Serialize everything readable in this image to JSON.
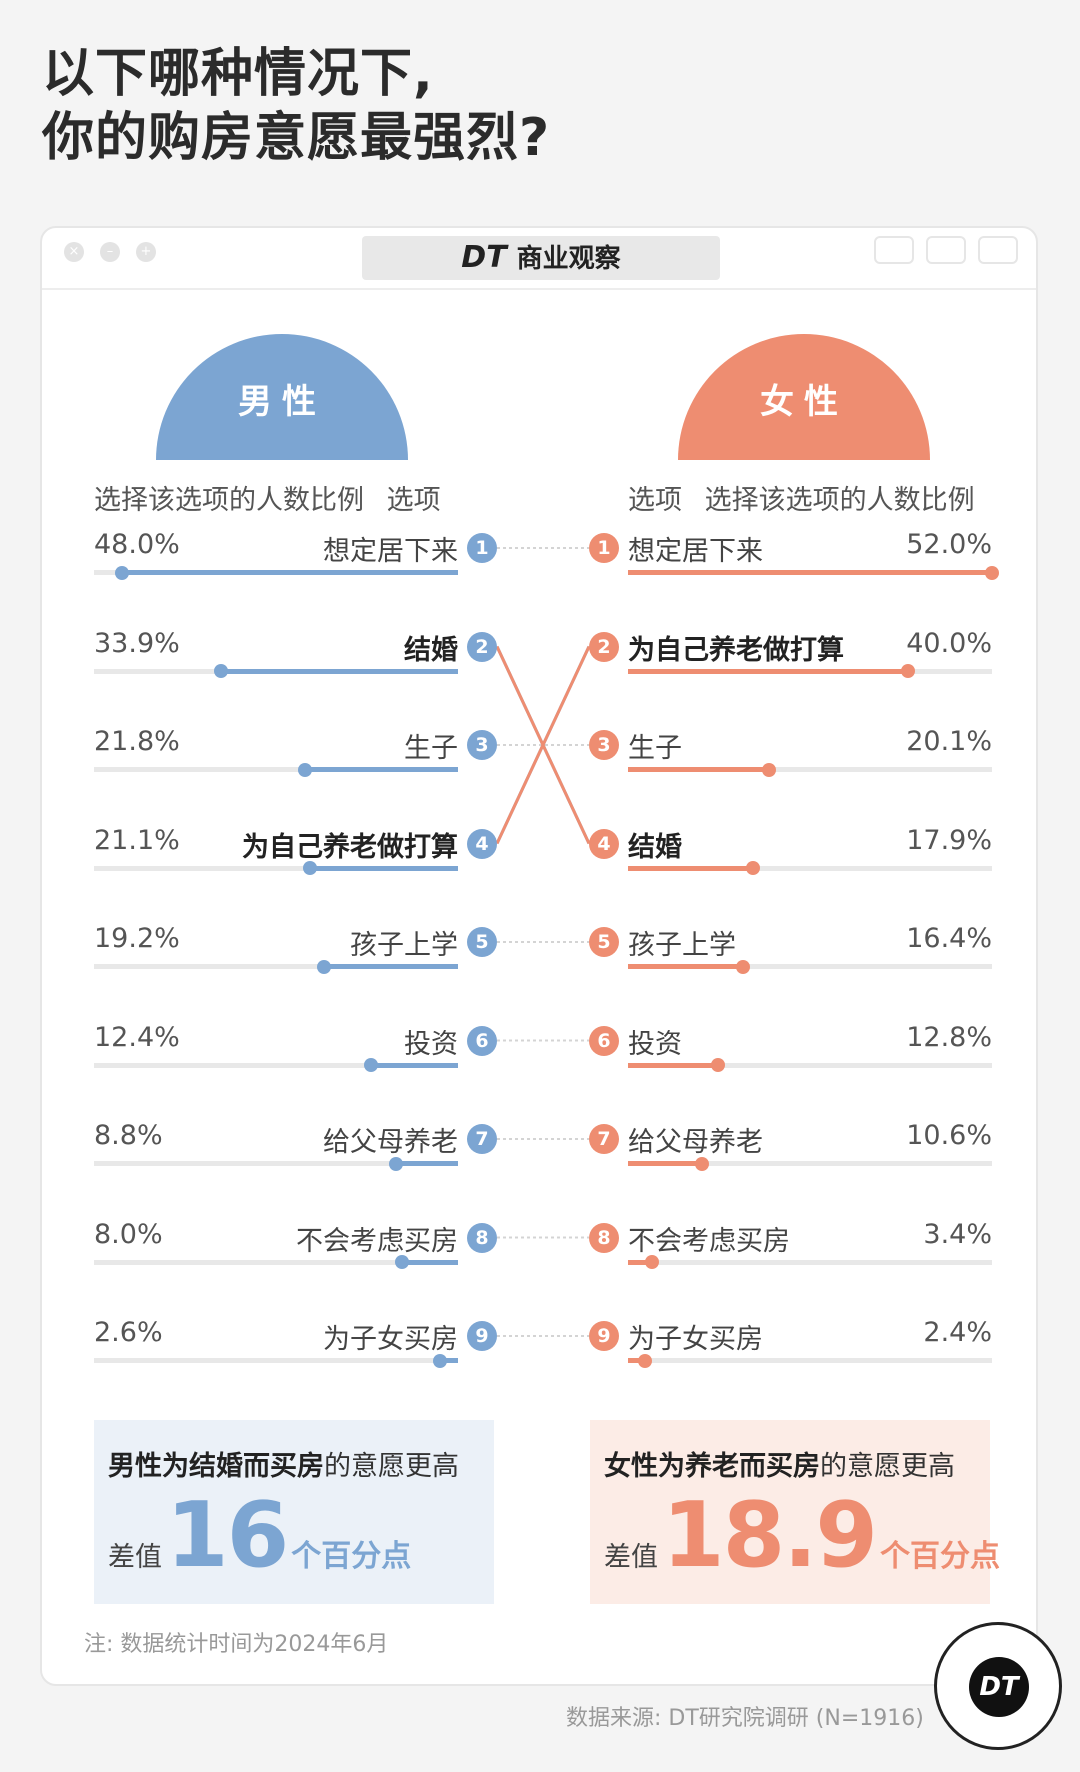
{
  "title_lines": [
    "以下哪种情况下,",
    "你的购房意愿最强烈?"
  ],
  "brand": {
    "mark": "DT",
    "name": "商业观察"
  },
  "colors": {
    "male": "#7ca5d2",
    "female": "#ee8d71",
    "male_bg": "#ebf1f8",
    "female_bg": "#fcece6"
  },
  "chart_data": {
    "type": "bar",
    "layout": "butterfly-ranked",
    "axis_range": [
      0,
      52
    ],
    "left": {
      "name": "男性",
      "header_value": "选择该选项的人数比例",
      "header_option": "选项",
      "items": [
        {
          "rank": "1",
          "label": "想定居下来",
          "value": 48.0,
          "display": "48.0%"
        },
        {
          "rank": "2",
          "label": "结婚",
          "value": 33.9,
          "display": "33.9%",
          "highlight": true
        },
        {
          "rank": "3",
          "label": "生子",
          "value": 21.8,
          "display": "21.8%"
        },
        {
          "rank": "4",
          "label": "为自己养老做打算",
          "value": 21.1,
          "display": "21.1%",
          "highlight": true
        },
        {
          "rank": "5",
          "label": "孩子上学",
          "value": 19.2,
          "display": "19.2%"
        },
        {
          "rank": "6",
          "label": "投资",
          "value": 12.4,
          "display": "12.4%"
        },
        {
          "rank": "7",
          "label": "给父母养老",
          "value": 8.8,
          "display": "8.8%"
        },
        {
          "rank": "8",
          "label": "不会考虑买房",
          "value": 8.0,
          "display": "8.0%"
        },
        {
          "rank": "9",
          "label": "为子女买房",
          "value": 2.6,
          "display": "2.6%"
        }
      ]
    },
    "right": {
      "name": "女性",
      "header_option": "选项",
      "header_value": "选择该选项的人数比例",
      "items": [
        {
          "rank": "1",
          "label": "想定居下来",
          "value": 52.0,
          "display": "52.0%"
        },
        {
          "rank": "2",
          "label": "为自己养老做打算",
          "value": 40.0,
          "display": "40.0%",
          "highlight": true
        },
        {
          "rank": "3",
          "label": "生子",
          "value": 20.1,
          "display": "20.1%"
        },
        {
          "rank": "4",
          "label": "结婚",
          "value": 17.9,
          "display": "17.9%",
          "highlight": true
        },
        {
          "rank": "5",
          "label": "孩子上学",
          "value": 16.4,
          "display": "16.4%"
        },
        {
          "rank": "6",
          "label": "投资",
          "value": 12.8,
          "display": "12.8%"
        },
        {
          "rank": "7",
          "label": "给父母养老",
          "value": 10.6,
          "display": "10.6%"
        },
        {
          "rank": "8",
          "label": "不会考虑买房",
          "value": 3.4,
          "display": "3.4%"
        },
        {
          "rank": "9",
          "label": "为子女买房",
          "value": 2.4,
          "display": "2.4%"
        }
      ]
    }
  },
  "callouts": {
    "male": {
      "bold": "男性为结婚而买房",
      "rest": "的意愿更高",
      "pre": "差值",
      "num": "16",
      "suf": "个百分点"
    },
    "female": {
      "bold": "女性为养老而买房",
      "rest": "的意愿更高",
      "pre": "差值",
      "num": "18.9",
      "suf": "个百分点"
    }
  },
  "note": "注: 数据统计时间为2024年6月",
  "source": "数据来源: DT研究院调研 (N=1916)",
  "logo": "DT"
}
